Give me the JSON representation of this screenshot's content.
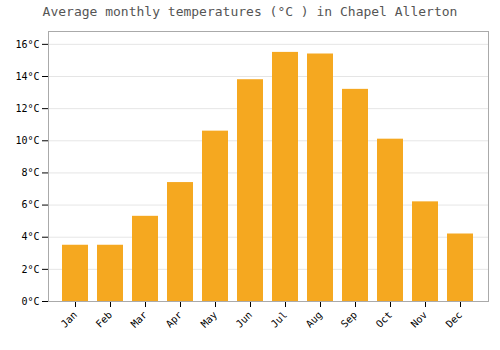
{
  "chart_data": {
    "type": "bar",
    "title": "Average monthly temperatures (°C ) in Chapel Allerton",
    "categories": [
      "Jan",
      "Feb",
      "Mar",
      "Apr",
      "May",
      "Jun",
      "Jul",
      "Aug",
      "Sep",
      "Oct",
      "Nov",
      "Dec"
    ],
    "values": [
      3.5,
      3.5,
      5.3,
      7.4,
      10.6,
      13.8,
      15.5,
      15.4,
      13.2,
      10.1,
      6.2,
      4.2
    ],
    "color": "#f5a820",
    "ylim": [
      0,
      16.8
    ],
    "yticks": [
      {
        "value": 0,
        "label": "0°C"
      },
      {
        "value": 2,
        "label": "2°C"
      },
      {
        "value": 4,
        "label": "4°C"
      },
      {
        "value": 6,
        "label": "6°C"
      },
      {
        "value": 8,
        "label": "8°C"
      },
      {
        "value": 10,
        "label": "10°C"
      },
      {
        "value": 12,
        "label": "12°C"
      },
      {
        "value": 14,
        "label": "14°C"
      },
      {
        "value": 16,
        "label": "16°C"
      }
    ],
    "grid": true
  }
}
